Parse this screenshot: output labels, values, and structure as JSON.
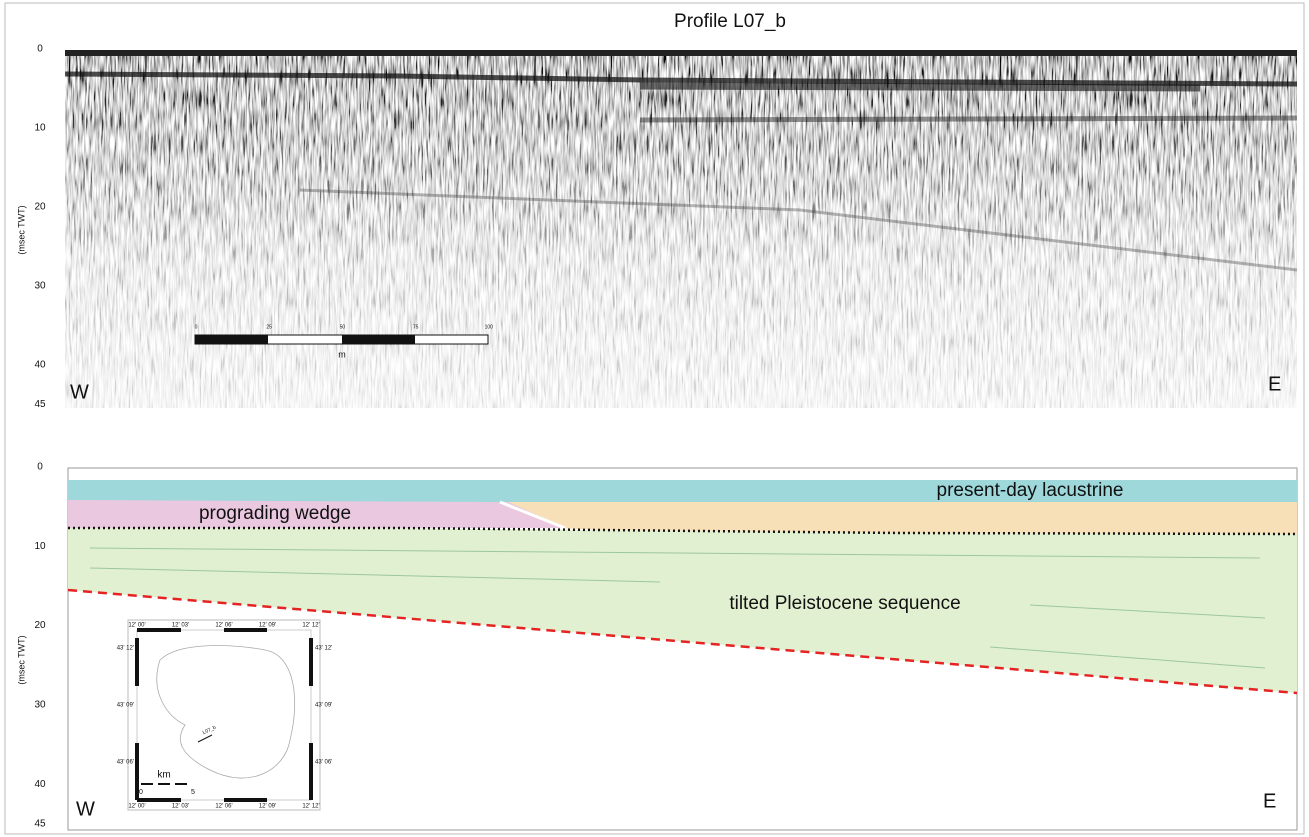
{
  "title": "Profile L07_b",
  "top_panel": {
    "axis_label": "(msec TWT)",
    "ticks": [
      0,
      10,
      20,
      30,
      40,
      45
    ],
    "west": "W",
    "east": "E",
    "scale_bar": {
      "labels": [
        "0",
        "25",
        "50",
        "75",
        "100"
      ],
      "unit": "m"
    }
  },
  "bottom_panel": {
    "axis_label": "(msec TWT)",
    "ticks": [
      0,
      10,
      20,
      30,
      40,
      45
    ],
    "west": "W",
    "east": "E",
    "units": [
      "present-day lacustrine",
      "prograding wedge",
      "tilted Pleistocene sequence"
    ],
    "inset_map": {
      "top_labels": [
        "12' 00'",
        "12' 03'",
        "12' 06'",
        "12' 09'",
        "12' 12'"
      ],
      "bottom_labels": [
        "12' 00'",
        "12' 03'",
        "12' 06'",
        "12' 09'",
        "12' 12'"
      ],
      "left_labels": [
        "43' 12'",
        "43' 09'",
        "43' 06'"
      ],
      "right_labels": [
        "43' 12'",
        "43' 09'",
        "43' 06'"
      ],
      "scale_unit": "km",
      "scale_labels": [
        "0",
        "5"
      ],
      "profile_label": "L07_b"
    }
  }
}
